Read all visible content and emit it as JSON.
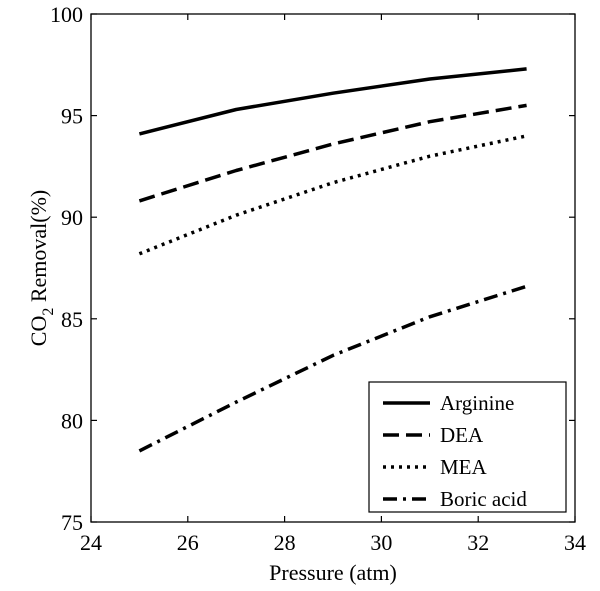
{
  "chart_data": {
    "type": "line",
    "title": "",
    "xlabel": "Pressure (atm)",
    "ylabel": {
      "prefix": "CO",
      "subscript": "2",
      "suffix": " Removal(%)"
    },
    "xlim": [
      24,
      34
    ],
    "ylim": [
      75,
      100
    ],
    "xticks": [
      24,
      26,
      28,
      30,
      32,
      34
    ],
    "yticks": [
      75,
      80,
      85,
      90,
      95,
      100
    ],
    "grid": false,
    "legend_position": "bottom-right",
    "x": [
      25,
      27,
      29,
      31,
      33
    ],
    "series": [
      {
        "name": "Arginine",
        "style": "solid",
        "values": [
          94.1,
          95.3,
          96.1,
          96.8,
          97.3
        ]
      },
      {
        "name": "DEA",
        "style": "dashed",
        "values": [
          90.8,
          92.3,
          93.6,
          94.7,
          95.5
        ]
      },
      {
        "name": "MEA",
        "style": "dotted",
        "values": [
          88.2,
          90.1,
          91.7,
          93.0,
          94.0
        ]
      },
      {
        "name": "Boric acid",
        "style": "dashdot",
        "values": [
          78.5,
          80.9,
          83.2,
          85.1,
          86.6
        ]
      }
    ],
    "colors": {
      "line": "#000000",
      "background": "#ffffff"
    }
  }
}
